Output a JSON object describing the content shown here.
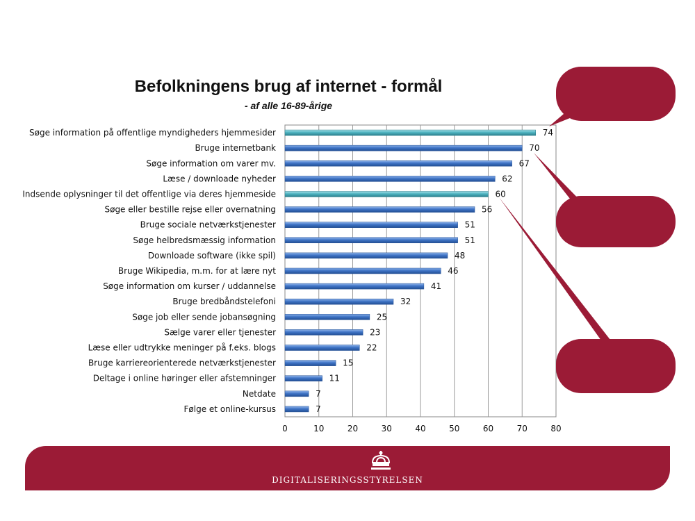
{
  "brand": {
    "name": "DIGITALISERINGSSTYRELSEN"
  },
  "colors": {
    "bar_blue": "#3f74c6",
    "bar_teal": "#4db3c0",
    "accent": "#9b1b36"
  },
  "chart_data": {
    "type": "bar",
    "orientation": "horizontal",
    "title": "Befolkningens brug af internet - formål",
    "subtitle": "- af alle 16-89-årige",
    "xlim": [
      0,
      80
    ],
    "x_ticks": [
      "0",
      "10",
      "20",
      "30",
      "40",
      "50",
      "60",
      "70",
      "80"
    ],
    "grid": true,
    "categories": [
      "Søge information på offentlige myndigheders hjemmesider",
      "Bruge internetbank",
      "Søge information om varer mv.",
      "Læse / downloade nyheder",
      "Indsende oplysninger til det offentlige via deres hjemmeside",
      "Søge eller bestille rejse eller overnatning",
      "Bruge sociale netværkstjenester",
      "Søge helbredsmæssig information",
      "Downloade software (ikke spil)",
      "Bruge Wikipedia, m.m. for at lære nyt",
      "Søge information om kurser / uddannelse",
      "Bruge bredbåndstelefoni",
      "Søge job eller sende jobansøgning",
      "Sælge varer eller tjenester",
      "Læse eller udtrykke meninger på f.eks. blogs",
      "Bruge karriereorienterede netværkstjenester",
      "Deltage i online høringer eller afstemninger",
      "Netdate",
      "Følge et online-kursus"
    ],
    "values": [
      74,
      70,
      67,
      62,
      60,
      56,
      51,
      51,
      48,
      46,
      41,
      32,
      25,
      23,
      22,
      15,
      11,
      7,
      7
    ],
    "labels": [
      "74",
      "70",
      "67",
      "62",
      "60",
      "56",
      "51",
      "51",
      "48",
      "46",
      "41",
      "32",
      "25",
      "23",
      "22",
      "15",
      "11",
      "7",
      "7"
    ],
    "highlighted": [
      0,
      4
    ]
  }
}
